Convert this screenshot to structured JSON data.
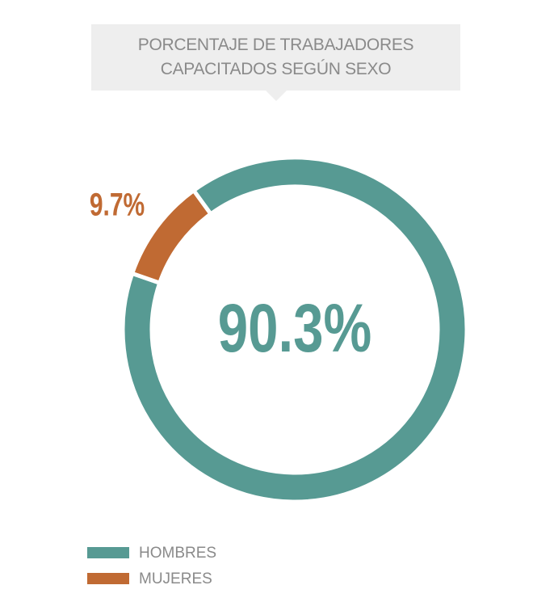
{
  "chart_data": {
    "type": "pie",
    "title": "PORCENTAJE DE TRABAJADORES CAPACITADOS SEGÚN SEXO",
    "categories": [
      "HOMBRES",
      "MUJERES"
    ],
    "values": [
      90.3,
      9.7
    ],
    "value_labels": [
      "90.3%",
      "9.7%"
    ],
    "colors": [
      "#579a93",
      "#c06a33"
    ],
    "donut": true,
    "legend": "bottom-left"
  }
}
